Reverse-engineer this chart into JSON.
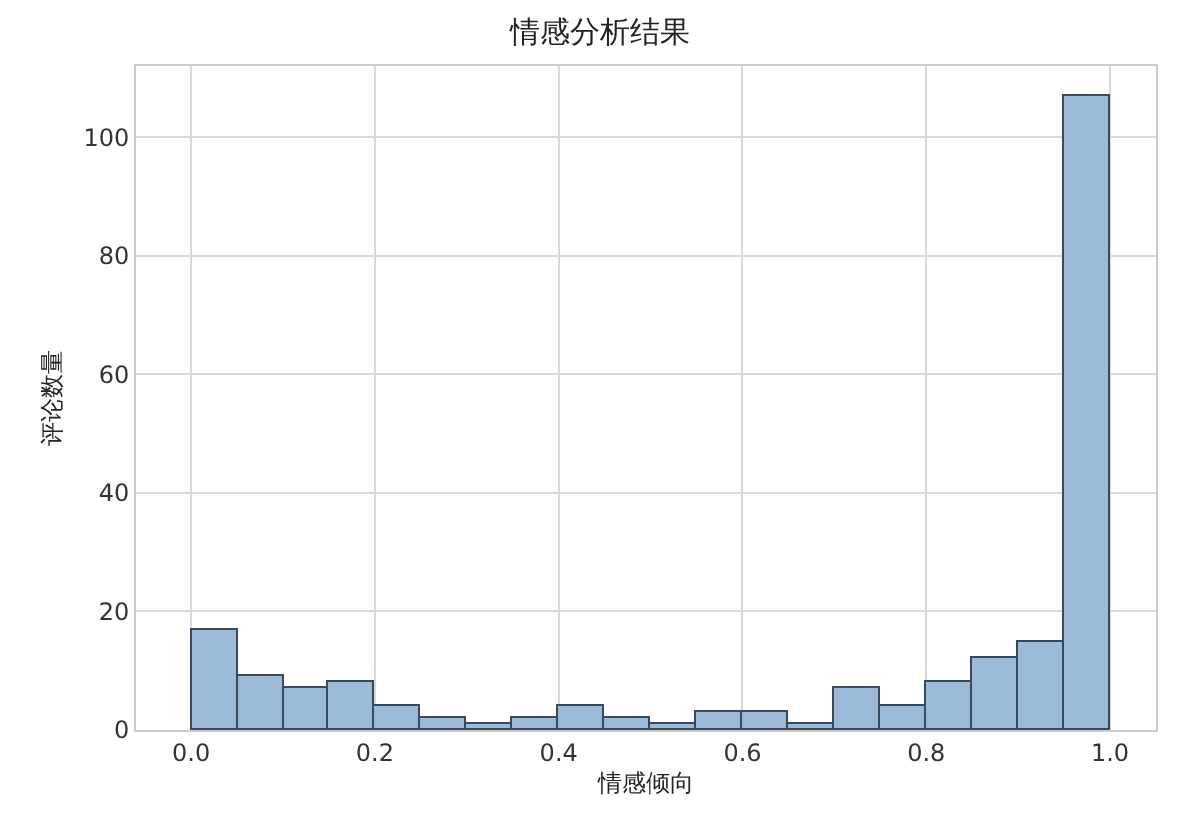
{
  "chart_data": {
    "type": "histogram",
    "title": "情感分析结果",
    "xlabel": "情感倾向",
    "ylabel": "评论数量",
    "bins": [
      0.0,
      0.05,
      0.1,
      0.15,
      0.2,
      0.25,
      0.3,
      0.35,
      0.4,
      0.45,
      0.5,
      0.55,
      0.6,
      0.65,
      0.7,
      0.75,
      0.8,
      0.85,
      0.9,
      0.95,
      1.0
    ],
    "values": [
      17,
      9,
      7,
      8,
      4,
      2,
      1,
      2,
      4,
      2,
      1,
      3,
      3,
      1,
      7,
      4,
      8,
      12,
      15,
      107
    ],
    "color": "#9bbbd9",
    "xlim": [
      -0.06,
      1.05
    ],
    "ylim": [
      0,
      112
    ],
    "xticks": [
      {
        "value": 0,
        "label": "0.0"
      },
      0.2,
      0.4,
      0.6,
      0.8,
      {
        "value": 1,
        "label": "1.0"
      }
    ],
    "yticks": [
      0,
      20,
      40,
      60,
      80,
      100
    ],
    "grid": true
  }
}
